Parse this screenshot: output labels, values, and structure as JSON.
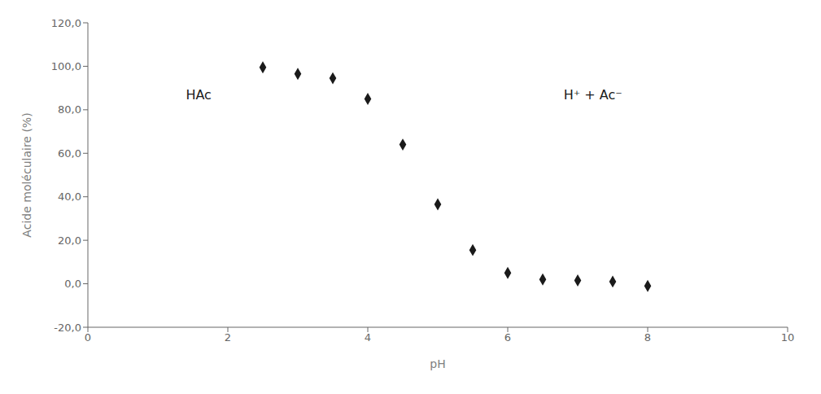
{
  "chart_data": {
    "type": "scatter",
    "x": [
      2.5,
      3.0,
      3.5,
      4.0,
      4.5,
      5.0,
      5.5,
      6.0,
      6.5,
      7.0,
      7.5,
      8.0
    ],
    "values": [
      99.5,
      96.5,
      94.5,
      85.0,
      64.0,
      36.5,
      15.5,
      5.0,
      2.0,
      1.5,
      1.0,
      -1.0
    ],
    "marker": "diamond",
    "color": "#1a1a1a",
    "xlabel": "pH",
    "ylabel": "Acide moléculaire (%)",
    "xlim": [
      0,
      10
    ],
    "ylim": [
      -20,
      120
    ],
    "xticks": [
      0,
      2,
      4,
      6,
      8,
      10
    ],
    "yticks": [
      {
        "value": -20,
        "label": "-20,0"
      },
      {
        "value": 0,
        "label": "0,0"
      },
      {
        "value": 20,
        "label": "20,0"
      },
      {
        "value": 40,
        "label": "40,0"
      },
      {
        "value": 60,
        "label": "60,0"
      },
      {
        "value": 80,
        "label": "80,0"
      },
      {
        "value": 100,
        "label": "100,0"
      },
      {
        "value": 120,
        "label": "120,0"
      }
    ],
    "annotations": [
      {
        "text": "HAc",
        "x": 1.4,
        "y": 87
      },
      {
        "text": "H⁺ + Ac⁻",
        "x": 6.8,
        "y": 87
      }
    ],
    "grid": false
  }
}
